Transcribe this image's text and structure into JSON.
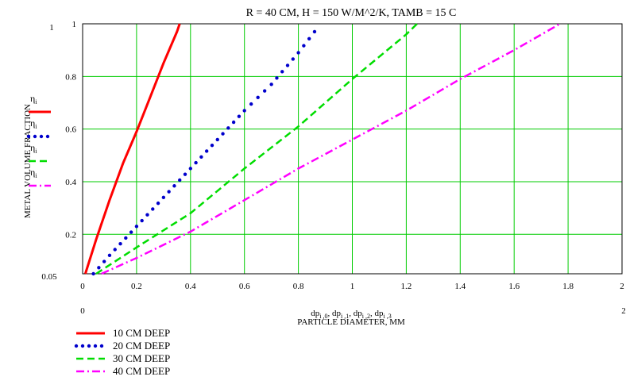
{
  "chart_data": {
    "type": "line",
    "title": "R = 40 CM, H = 150 W/M^2/K, TAMB = 15 C",
    "xlabel": "PARTICLE DIAMETER, MM",
    "xlabel_expression": "dp",
    "xlabel_subscripts": [
      "i ,0",
      "i ,1",
      "i ,2",
      "i ,3"
    ],
    "ylabel": "METAL VOLUME FRACTION",
    "xlim": [
      0,
      2
    ],
    "ylim": [
      0.05,
      1
    ],
    "xlim_labels": {
      "min": "0",
      "max": "2"
    },
    "ylim_labels": {
      "min": "0.05",
      "max": "1"
    },
    "x_ticks": [
      0,
      0.2,
      0.4,
      0.6,
      0.8,
      1,
      1.2,
      1.4,
      1.6,
      1.8,
      2
    ],
    "x_tick_labels": [
      "0",
      "0.2",
      "0.4",
      "0.6",
      "0.8",
      "1",
      "1.2",
      "1.4",
      "1.6",
      "1.8",
      "2"
    ],
    "y_ticks": [
      0.2,
      0.4,
      0.6,
      0.8,
      1
    ],
    "y_tick_labels": [
      "0.2",
      "0.4",
      "0.6",
      "0.8",
      "1"
    ],
    "grid": true,
    "grid_color": "#00cc00",
    "legend_placement": "bottom-left",
    "axis_legend_symbol": "η",
    "axis_legend_subscript": "i",
    "series": [
      {
        "name": "10 CM DEEP",
        "color": "#ff0000",
        "style": "solid",
        "x": [
          0.01,
          0.05,
          0.1,
          0.15,
          0.2,
          0.25,
          0.3,
          0.35,
          0.36
        ],
        "y": [
          0.05,
          0.18,
          0.33,
          0.47,
          0.59,
          0.72,
          0.85,
          0.97,
          1.0
        ]
      },
      {
        "name": "20 CM DEEP",
        "color": "#0000cc",
        "style": "dotted",
        "x": [
          0.04,
          0.1,
          0.2,
          0.3,
          0.4,
          0.5,
          0.6,
          0.7,
          0.8,
          0.86
        ],
        "y": [
          0.05,
          0.12,
          0.23,
          0.34,
          0.45,
          0.56,
          0.67,
          0.77,
          0.89,
          0.97
        ]
      },
      {
        "name": "30 CM DEEP",
        "color": "#00dd00",
        "style": "dashed",
        "x": [
          0.05,
          0.2,
          0.4,
          0.6,
          0.8,
          1.0,
          1.2,
          1.24
        ],
        "y": [
          0.05,
          0.15,
          0.28,
          0.45,
          0.61,
          0.79,
          0.96,
          1.0
        ]
      },
      {
        "name": "40 CM DEEP",
        "color": "#ff00ff",
        "style": "dashdot",
        "x": [
          0.07,
          0.2,
          0.4,
          0.6,
          0.8,
          1.0,
          1.2,
          1.4,
          1.6,
          1.77
        ],
        "y": [
          0.05,
          0.11,
          0.21,
          0.33,
          0.45,
          0.56,
          0.67,
          0.79,
          0.9,
          1.0
        ]
      }
    ]
  }
}
